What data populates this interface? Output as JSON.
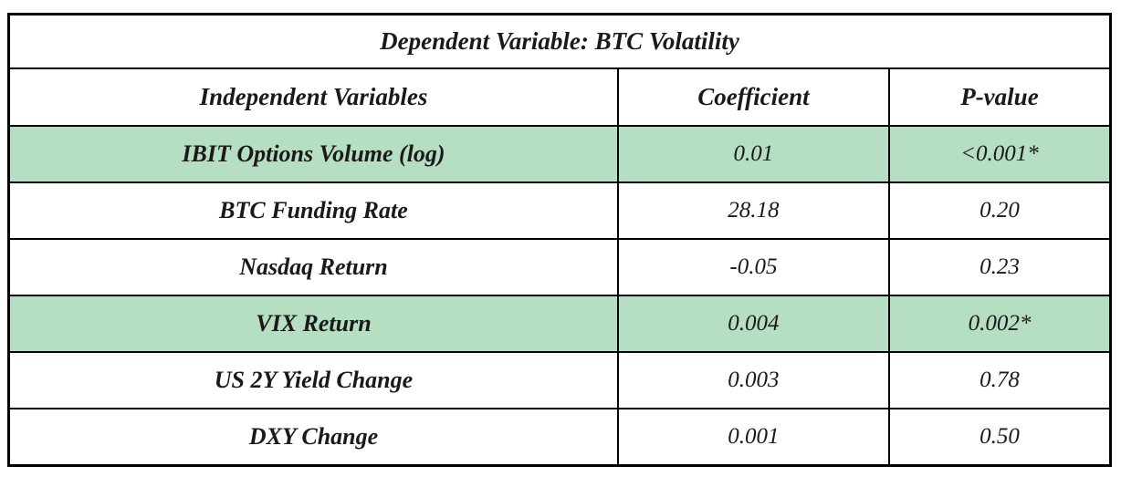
{
  "table": {
    "title": "Dependent Variable: BTC Volatility",
    "columns": {
      "variable": "Independent Variables",
      "coefficient": "Coefficient",
      "p_value": "P-value"
    },
    "rows": [
      {
        "variable": "IBIT Options Volume (log)",
        "coefficient": "0.01",
        "p_value": "<0.001*",
        "highlighted": true
      },
      {
        "variable": "BTC Funding Rate",
        "coefficient": "28.18",
        "p_value": "0.20",
        "highlighted": false
      },
      {
        "variable": "Nasdaq Return",
        "coefficient": "-0.05",
        "p_value": "0.23",
        "highlighted": false
      },
      {
        "variable": "VIX Return",
        "coefficient": "0.004",
        "p_value": "0.002*",
        "highlighted": true
      },
      {
        "variable": "US 2Y Yield Change",
        "coefficient": "0.003",
        "p_value": "0.78",
        "highlighted": false
      },
      {
        "variable": "DXY Change",
        "coefficient": "0.001",
        "p_value": "0.50",
        "highlighted": false
      }
    ],
    "colors": {
      "highlight": "#b5dec3",
      "border": "#000000",
      "text": "#1a1a1a"
    },
    "significance_marker": "*"
  }
}
